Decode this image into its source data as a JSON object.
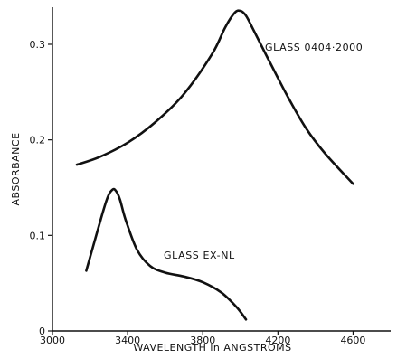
{
  "chart_data": {
    "type": "line",
    "xlabel": "WAVELENGTH in ANGSTROMS",
    "ylabel": "ABSORBANCE",
    "xlim": [
      3000,
      4800
    ],
    "ylim": [
      0,
      0.335
    ],
    "x_ticks": [
      3000,
      3400,
      3800,
      4200,
      4600
    ],
    "x_tick_labels": [
      "3000",
      "3400",
      "3800",
      "4200",
      "4600"
    ],
    "y_ticks": [
      0,
      0.1,
      0.2,
      0.3
    ],
    "y_tick_labels": [
      "0",
      "0.1",
      "0.2",
      "0.3"
    ],
    "grid": false,
    "colors": {
      "line": "#111111",
      "axis": "#111111"
    },
    "series": [
      {
        "name": "GLASS 0404·2000",
        "x": [
          3130,
          3250,
          3400,
          3550,
          3700,
          3850,
          3920,
          3970,
          4000,
          4030,
          4070,
          4150,
          4250,
          4350,
          4450,
          4600
        ],
        "y": [
          0.174,
          0.182,
          0.197,
          0.219,
          0.248,
          0.29,
          0.318,
          0.333,
          0.335,
          0.33,
          0.315,
          0.284,
          0.246,
          0.212,
          0.186,
          0.154
        ]
      },
      {
        "name": "GLASS EX-NL",
        "x": [
          3180,
          3240,
          3290,
          3320,
          3340,
          3360,
          3390,
          3450,
          3520,
          3600,
          3700,
          3800,
          3900,
          3980,
          4030
        ],
        "y": [
          0.063,
          0.105,
          0.138,
          0.148,
          0.146,
          0.137,
          0.116,
          0.085,
          0.068,
          0.061,
          0.057,
          0.051,
          0.04,
          0.025,
          0.012
        ]
      }
    ]
  }
}
